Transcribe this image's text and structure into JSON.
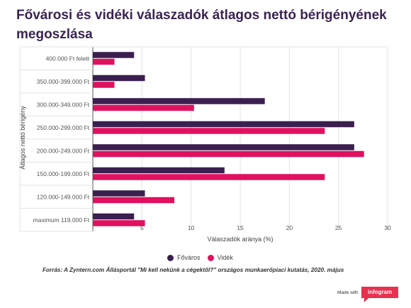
{
  "title": "Fővárosi és vidéki válaszadók átlagos nettó bérigényének megoszlása",
  "legend": {
    "budapest": "Főváros",
    "videk": "Vidék"
  },
  "source": "Forrás: A Zyntern.com Állásportál \"Mi kell nekünk a cégektől?\" országos munkaerőpiaci kutatás, 2020. május",
  "branding": {
    "made_with": "Made with",
    "logo": "infogram"
  },
  "colors": {
    "budapest": "#3b1f4f",
    "videk": "#e0115f"
  },
  "chart_data": {
    "type": "bar",
    "orientation": "horizontal",
    "title": "Fővárosi és vidéki válaszadók átlagos nettó bérigényének megoszlása",
    "xlabel": "Válaszadók aránya (%)",
    "ylabel": "Átlagos nettó bérigény",
    "xlim": [
      0,
      30
    ],
    "xticks": [
      0,
      5,
      10,
      15,
      20,
      25,
      30
    ],
    "xtick_labels": [
      "",
      "5",
      "10",
      "15",
      "20",
      "25",
      "30"
    ],
    "grid": true,
    "legend_position": "bottom",
    "categories": [
      "400.000 Ft felett",
      "350.000-399.000 Ft",
      "300.000-349.000 Ft",
      "250.000-299.000 Ft",
      "200.000-249.000 Ft",
      "150.000-199.000 Ft",
      "120.000-149.000 Ft",
      "maximum 119.000 Ft"
    ],
    "series": [
      {
        "name": "Főváros",
        "values": [
          4.2,
          5.3,
          17.5,
          26.6,
          26.6,
          13.4,
          5.3,
          4.2
        ]
      },
      {
        "name": "Vidék",
        "values": [
          2.2,
          2.2,
          10.3,
          23.6,
          27.6,
          23.6,
          8.3,
          5.3
        ]
      }
    ]
  }
}
